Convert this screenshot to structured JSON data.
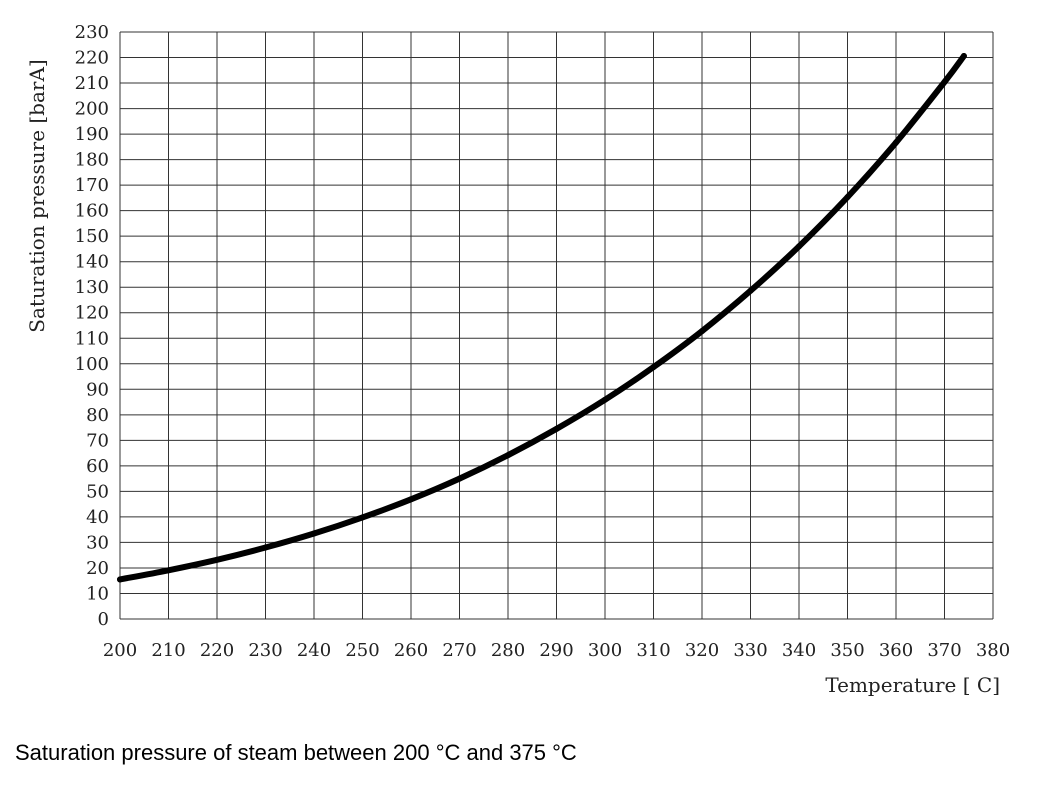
{
  "chart_data": {
    "type": "line",
    "title": "",
    "xlabel": "Temperature [ C]",
    "ylabel": "Saturation pressure [barA]",
    "xlim": [
      200,
      380
    ],
    "ylim": [
      0,
      230
    ],
    "x_ticks": [
      200,
      210,
      220,
      230,
      240,
      250,
      260,
      270,
      280,
      290,
      300,
      310,
      320,
      330,
      340,
      350,
      360,
      370,
      380
    ],
    "y_ticks": [
      0,
      10,
      20,
      30,
      40,
      50,
      60,
      70,
      80,
      90,
      100,
      110,
      120,
      130,
      140,
      150,
      160,
      170,
      180,
      190,
      200,
      210,
      220,
      230
    ],
    "grid": true,
    "series": [
      {
        "x": [
          200,
          210,
          220,
          230,
          240,
          250,
          260,
          270,
          280,
          290,
          300,
          310,
          320,
          330,
          340,
          350,
          360,
          370,
          374
        ],
        "y": [
          15.5,
          19.1,
          23.2,
          28.0,
          33.5,
          39.8,
          46.9,
          55.0,
          64.2,
          74.5,
          85.9,
          98.7,
          112.8,
          128.6,
          146.0,
          165.3,
          186.7,
          210.4,
          220.6
        ],
        "color": "#000000"
      }
    ]
  },
  "caption": "Saturation pressure of steam between 200 °C and 375 °C"
}
